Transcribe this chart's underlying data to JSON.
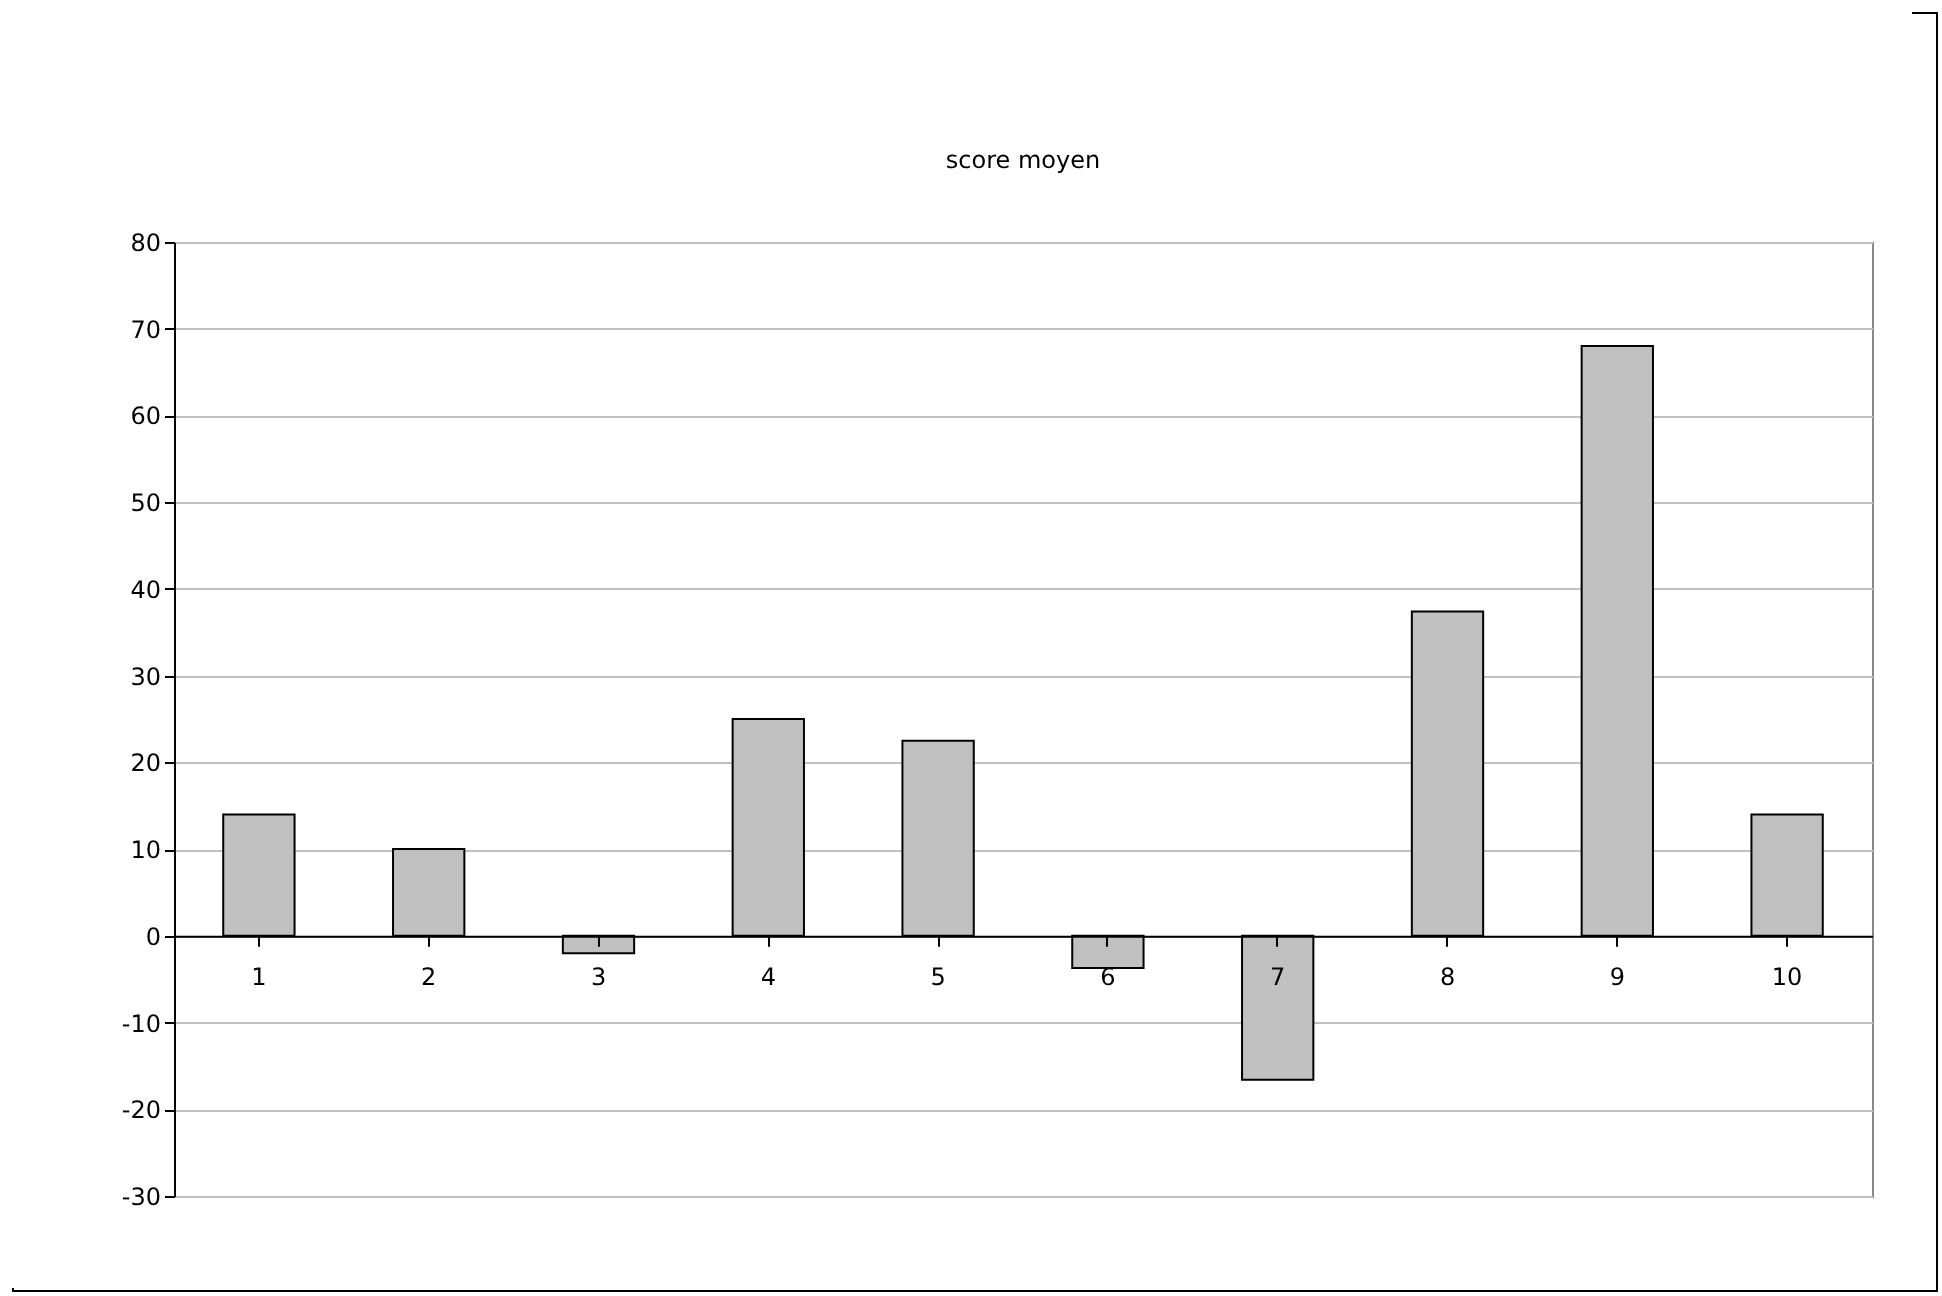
{
  "chart_data": {
    "type": "bar",
    "title": "score moyen",
    "categories": [
      "1",
      "2",
      "3",
      "4",
      "5",
      "6",
      "7",
      "8",
      "9",
      "10"
    ],
    "values": [
      14,
      10,
      -2,
      25,
      22.5,
      -3.7,
      -16.6,
      37.4,
      68,
      14
    ],
    "color": "#c0c0c0",
    "ylim": [
      -30,
      80
    ],
    "yticks": [
      -30,
      -20,
      -10,
      0,
      10,
      20,
      30,
      40,
      50,
      60,
      70,
      80
    ],
    "grid": "y"
  }
}
